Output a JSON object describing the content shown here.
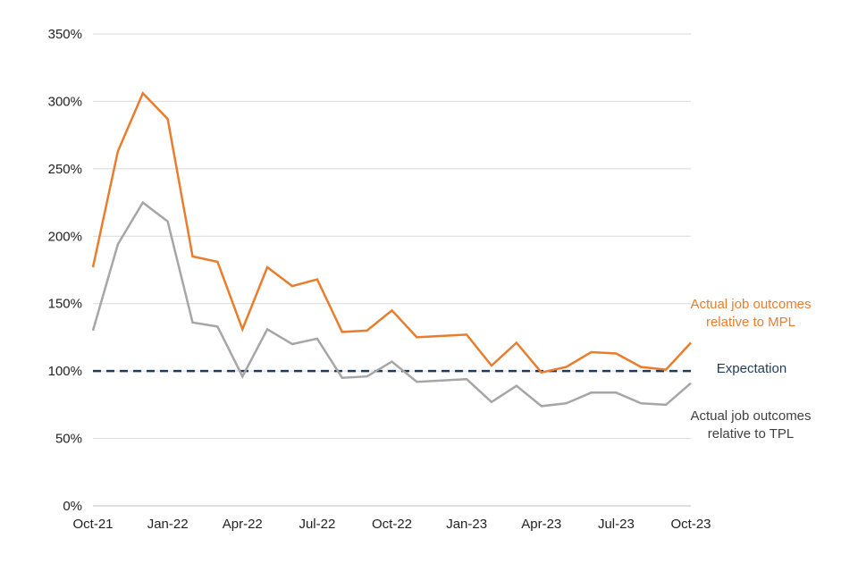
{
  "chart_data": {
    "type": "line",
    "title": "",
    "xlabel": "",
    "ylabel": "",
    "ylim": [
      0,
      350
    ],
    "yticks": [
      0,
      50,
      100,
      150,
      200,
      250,
      300,
      350
    ],
    "ytick_labels": [
      "0%",
      "50%",
      "100%",
      "150%",
      "200%",
      "250%",
      "300%",
      "350%"
    ],
    "x_count": 25,
    "x_tick_indices": [
      0,
      3,
      6,
      9,
      12,
      15,
      18,
      21,
      24
    ],
    "x_tick_labels": [
      "Oct-21",
      "Jan-22",
      "Apr-22",
      "Jul-22",
      "Oct-22",
      "Jan-23",
      "Apr-23",
      "Jul-23",
      "Oct-23"
    ],
    "grid": "horizontal",
    "series": [
      {
        "name": "Actual job outcomes relative to MPL",
        "label_lines": [
          "Actual job outcomes",
          "relative to MPL"
        ],
        "color": "#E87D2E",
        "values": [
          177,
          263,
          306,
          287,
          185,
          181,
          131,
          177,
          163,
          168,
          129,
          130,
          145,
          125,
          126,
          127,
          104,
          121,
          99,
          103,
          114,
          113,
          103,
          101,
          121
        ]
      },
      {
        "name": "Actual job outcomes relative to TPL",
        "label_lines": [
          "Actual job outcomes",
          "relative to TPL"
        ],
        "color": "#A6A6A6",
        "values": [
          130,
          194,
          225,
          211,
          136,
          133,
          96,
          131,
          120,
          124,
          95,
          96,
          107,
          92,
          93,
          94,
          77,
          89,
          74,
          76,
          84,
          84,
          76,
          75,
          91
        ]
      }
    ],
    "reference_line": {
      "name": "Expectation",
      "value": 100,
      "color": "#1F3B5C"
    }
  }
}
